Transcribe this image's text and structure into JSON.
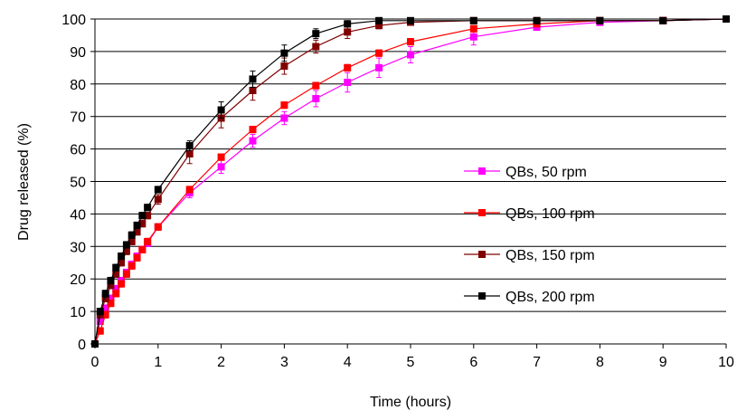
{
  "chart_data": {
    "type": "line",
    "title": "",
    "xlabel": "Time (hours)",
    "ylabel": "Drug released (%)",
    "xlim": [
      0,
      10
    ],
    "ylim": [
      0,
      100
    ],
    "x_ticks": [
      0,
      1,
      2,
      3,
      4,
      5,
      6,
      7,
      8,
      9,
      10
    ],
    "y_ticks": [
      0,
      10,
      20,
      30,
      40,
      50,
      60,
      70,
      80,
      90,
      100
    ],
    "grid": "horizontal",
    "legend_position": "right",
    "series": [
      {
        "name": "QBs, 50 rpm",
        "color": "#ff00ff",
        "marker": "square",
        "x": [
          0,
          0.083,
          0.167,
          0.25,
          0.333,
          0.417,
          0.5,
          0.583,
          0.667,
          0.75,
          0.833,
          1,
          1.5,
          2,
          2.5,
          3,
          3.5,
          4,
          4.5,
          5,
          6,
          7,
          8,
          9,
          10
        ],
        "y": [
          0,
          7,
          11,
          14,
          17,
          19.5,
          22,
          24.5,
          27,
          29,
          31,
          36,
          46.5,
          54.5,
          62.5,
          69.5,
          75.5,
          80.5,
          85,
          89,
          94.5,
          97.5,
          99,
          99.5,
          100
        ],
        "error": [
          0,
          1,
          1,
          1,
          1,
          1,
          1,
          1,
          1,
          1,
          1,
          1,
          1.5,
          2,
          2,
          2,
          2.5,
          3,
          3,
          2.5,
          2.5,
          1,
          1,
          0.5,
          0.5
        ]
      },
      {
        "name": "QBs, 100 rpm",
        "color": "#ff0000",
        "marker": "square",
        "x": [
          0,
          0.083,
          0.167,
          0.25,
          0.333,
          0.417,
          0.5,
          0.583,
          0.667,
          0.75,
          0.833,
          1,
          1.5,
          2,
          2.5,
          3,
          3.5,
          4,
          4.5,
          5,
          6,
          7,
          8,
          9,
          10
        ],
        "y": [
          0,
          4,
          9,
          12.5,
          15.5,
          18.5,
          21.5,
          24,
          26.5,
          29,
          31.5,
          36,
          47.5,
          57.5,
          66,
          73.5,
          79.5,
          85,
          89.5,
          93,
          97,
          98.5,
          99.5,
          99.5,
          100
        ],
        "error": [
          0,
          1,
          1,
          1,
          1,
          1,
          1,
          1,
          1,
          1,
          1,
          1,
          1,
          1,
          1,
          1,
          1,
          1,
          1,
          1,
          1,
          0.5,
          0.5,
          0.5,
          0.5
        ]
      },
      {
        "name": "QBs, 150 rpm",
        "color": "#800000",
        "marker": "square",
        "x": [
          0,
          0.083,
          0.167,
          0.25,
          0.333,
          0.417,
          0.5,
          0.583,
          0.667,
          0.75,
          0.833,
          1,
          1.5,
          2,
          2.5,
          3,
          3.5,
          4,
          4.5,
          5,
          6,
          7,
          8,
          9,
          10
        ],
        "y": [
          0,
          9,
          14,
          18,
          21.5,
          25,
          28.5,
          31.5,
          34.5,
          37,
          39.5,
          44.5,
          58.5,
          69.5,
          78,
          85.5,
          91.5,
          96,
          98,
          99,
          99.5,
          99.5,
          99.5,
          99.5,
          100
        ],
        "error": [
          0,
          1,
          1,
          1,
          1,
          1,
          1,
          1,
          1,
          1,
          1,
          1.5,
          3,
          3,
          3,
          2.5,
          2,
          2,
          1,
          0.5,
          0.5,
          0.5,
          0.5,
          0.5,
          0.5
        ]
      },
      {
        "name": "QBs, 200 rpm",
        "color": "#000000",
        "marker": "square",
        "x": [
          0,
          0.083,
          0.167,
          0.25,
          0.333,
          0.417,
          0.5,
          0.583,
          0.667,
          0.75,
          0.833,
          1,
          1.5,
          2,
          2.5,
          3,
          3.5,
          4,
          4.5,
          5,
          6,
          7,
          8,
          9,
          10
        ],
        "y": [
          0,
          10,
          15.5,
          19.5,
          23.5,
          27,
          30.5,
          33.5,
          36.5,
          39.5,
          42,
          47.5,
          61,
          72,
          81.5,
          89.5,
          95.5,
          98.5,
          99.5,
          99.5,
          99.5,
          99.5,
          99.5,
          99.5,
          100
        ],
        "error": [
          0,
          1,
          1,
          1,
          1,
          1,
          1,
          1,
          1,
          1,
          1,
          1,
          1.5,
          2.5,
          2.5,
          2.5,
          1.5,
          1,
          0.5,
          0.5,
          0.5,
          0.5,
          0.5,
          0.5,
          0.5
        ]
      }
    ]
  }
}
